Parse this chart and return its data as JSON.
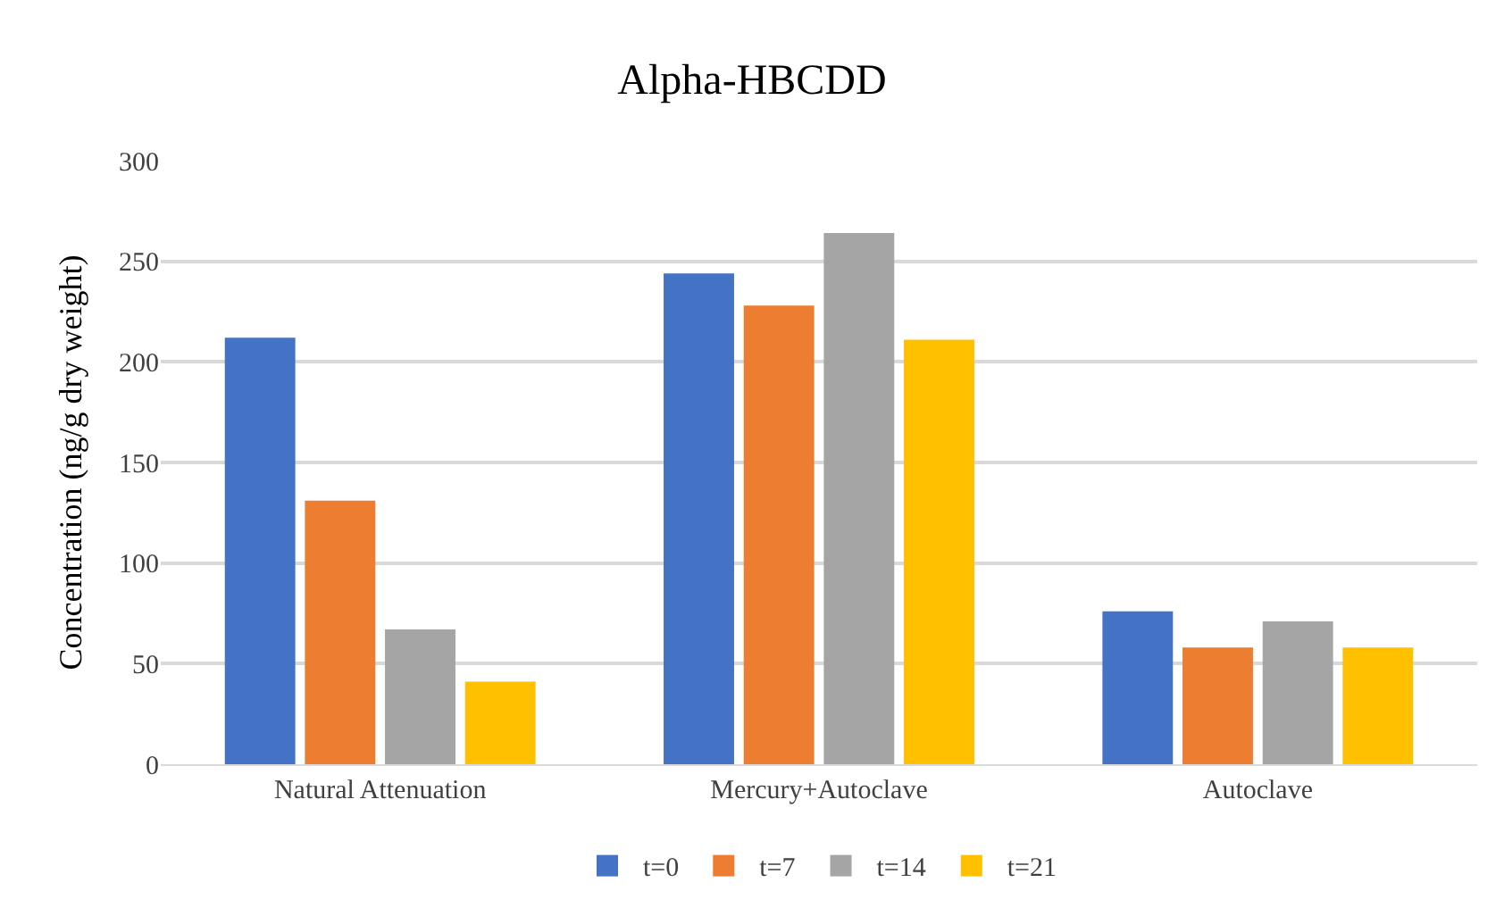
{
  "chart_data": {
    "type": "bar",
    "title": "Alpha-HBCDD",
    "ylabel": "Concentration (ng/g dry weight)",
    "categories": [
      "Natural Attenuation",
      "Mercury+Autoclave",
      "Autoclave"
    ],
    "series": [
      {
        "name": "t=0",
        "color": "#4472c4",
        "values": [
          212,
          244,
          76
        ]
      },
      {
        "name": "t=7",
        "color": "#ed7d31",
        "values": [
          131,
          228,
          58
        ]
      },
      {
        "name": "t=14",
        "color": "#a5a5a5",
        "values": [
          67,
          264,
          71
        ]
      },
      {
        "name": "t=21",
        "color": "#ffc000",
        "values": [
          41,
          211,
          58
        ]
      }
    ],
    "ylim": [
      0,
      300
    ],
    "yticks": [
      0,
      50,
      100,
      150,
      200,
      250,
      300
    ],
    "grid": "y",
    "legend": "bottom"
  }
}
